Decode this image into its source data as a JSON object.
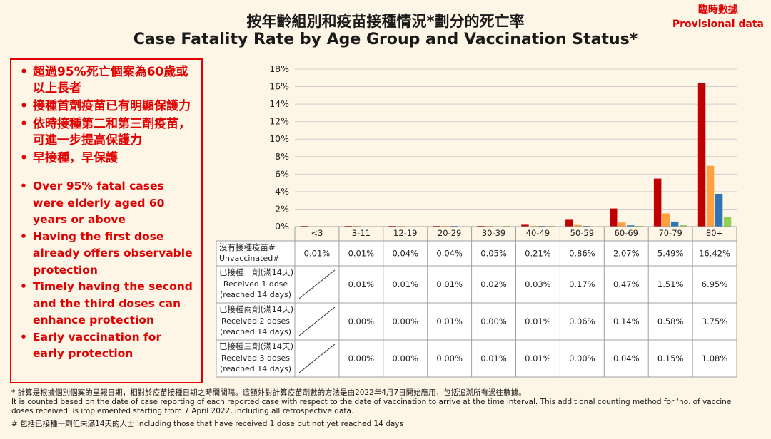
{
  "header": {
    "title_zh": "按年齡組別和疫苗接種情況*劃分的死亡率",
    "title_en": "Case Fatality Rate by Age Group and Vaccination Status*",
    "provisional_zh": "臨時數據",
    "provisional_en": "Provisional data"
  },
  "key_points": {
    "zh": [
      "超過95%死亡個案為60歲或以上長者",
      "接種首劑疫苗已有明顯保護力",
      "依時接種第二和第三劑疫苗，可進一步提高保護力",
      "早接種，早保護"
    ],
    "en": [
      "Over 95% fatal cases were elderly aged 60 years or above",
      "Having the first dose already offers observable protection",
      "Timely having the second and the third doses can enhance protection",
      "Early vaccination for early protection"
    ]
  },
  "chart_data": {
    "type": "bar",
    "categories": [
      "<3",
      "3-11",
      "12-19",
      "20-29",
      "30-39",
      "40-49",
      "50-59",
      "60-69",
      "70-79",
      "80+"
    ],
    "ylim": [
      0,
      18
    ],
    "y_ticks": [
      "0%",
      "2%",
      "4%",
      "6%",
      "8%",
      "10%",
      "12%",
      "14%",
      "16%",
      "18%"
    ],
    "gridlines": true,
    "legend": "table",
    "series": [
      {
        "name": "沒有接種疫苗# Unvaccinated#",
        "name_zh": "沒有接種疫苗#",
        "name_en": "Unvaccinated#",
        "color": "#c00000",
        "values": [
          0.01,
          0.01,
          0.04,
          0.04,
          0.05,
          0.21,
          0.86,
          2.07,
          5.49,
          16.42
        ],
        "labels": [
          "0.01%",
          "0.01%",
          "0.04%",
          "0.04%",
          "0.05%",
          "0.21%",
          "0.86%",
          "2.07%",
          "5.49%",
          "16.42%"
        ]
      },
      {
        "name": "已接種一劑(滿14天) Received 1 dose (reached 14 days)",
        "name_zh": "已接種一劑(滿14天)",
        "name_en1": "Received 1 dose",
        "name_en2": "(reached 14 days)",
        "color": "#ffa040",
        "values": [
          null,
          0.01,
          0.01,
          0.01,
          0.02,
          0.03,
          0.17,
          0.47,
          1.51,
          6.95
        ],
        "labels": [
          "",
          "0.01%",
          "0.01%",
          "0.01%",
          "0.02%",
          "0.03%",
          "0.17%",
          "0.47%",
          "1.51%",
          "6.95%"
        ]
      },
      {
        "name": "已接種兩劑(滿14天) Received 2 doses (reached 14 days)",
        "name_zh": "已接種兩劑(滿14天)",
        "name_en1": "Received 2 doses",
        "name_en2": "(reached 14 days)",
        "color": "#2e75b6",
        "values": [
          null,
          0.0,
          0.0,
          0.01,
          0.0,
          0.01,
          0.06,
          0.14,
          0.58,
          3.75
        ],
        "labels": [
          "",
          "0.00%",
          "0.00%",
          "0.01%",
          "0.00%",
          "0.01%",
          "0.06%",
          "0.14%",
          "0.58%",
          "3.75%"
        ]
      },
      {
        "name": "已接種三劑(滿14天) Received 3 doses (reached 14 days)",
        "name_zh": "已接種三劑(滿14天)",
        "name_en1": "Received 3 doses",
        "name_en2": "(reached 14 days)",
        "color": "#92d050",
        "values": [
          null,
          0.0,
          0.0,
          0.0,
          0.01,
          0.01,
          0.0,
          0.04,
          0.15,
          1.08
        ],
        "labels": [
          "",
          "0.00%",
          "0.00%",
          "0.00%",
          "0.01%",
          "0.01%",
          "0.00%",
          "0.04%",
          "0.15%",
          "1.08%"
        ]
      }
    ]
  },
  "footnotes": {
    "star_zh": "* 計算是根據個別個案的呈報日期，相對於疫苗接種日期之時間間隔。這額外對計算疫苗劑數的方法是由2022年4月7日開始應用，包括追溯所有過往數據。",
    "star_en1": "It is counted based on the date of case reporting of each reported case with respect to the date of vaccination to arrive at the time interval.  This additional counting method for ‘no. of vaccine",
    "star_en2": "doses received’ is implemented starting from 7 April 2022, including all retrospective data.",
    "hash": "# 包括已接種一劑但未滿14天的人士  Including those that have received 1 dose but not yet reached 14 days"
  }
}
